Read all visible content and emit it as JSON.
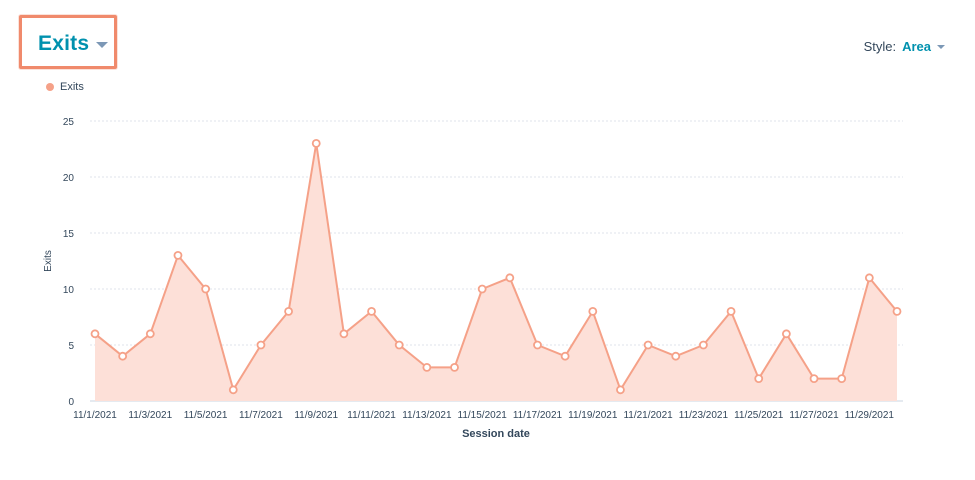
{
  "metric_selector": {
    "label": "Exits"
  },
  "style_control": {
    "prefix": "Style:",
    "value": "Area"
  },
  "legend": {
    "items": [
      {
        "label": "Exits",
        "color": "#f5a188"
      }
    ]
  },
  "colors": {
    "line": "#f5a188",
    "fill": "#fde0d8",
    "grid": "#dfe3eb",
    "accent": "#0091ae",
    "highlight_border": "#f08a6c"
  },
  "chart_data": {
    "type": "area",
    "x": [
      "11/1/2021",
      "11/2/2021",
      "11/3/2021",
      "11/4/2021",
      "11/5/2021",
      "11/6/2021",
      "11/7/2021",
      "11/8/2021",
      "11/9/2021",
      "11/10/2021",
      "11/11/2021",
      "11/12/2021",
      "11/13/2021",
      "11/14/2021",
      "11/15/2021",
      "11/16/2021",
      "11/17/2021",
      "11/18/2021",
      "11/19/2021",
      "11/20/2021",
      "11/21/2021",
      "11/22/2021",
      "11/23/2021",
      "11/24/2021",
      "11/25/2021",
      "11/26/2021",
      "11/27/2021",
      "11/28/2021",
      "11/29/2021",
      "11/30/2021"
    ],
    "tick_labels": [
      "11/1/2021",
      "11/3/2021",
      "11/5/2021",
      "11/7/2021",
      "11/9/2021",
      "11/11/2021",
      "11/13/2021",
      "11/15/2021",
      "11/17/2021",
      "11/19/2021",
      "11/21/2021",
      "11/23/2021",
      "11/25/2021",
      "11/27/2021",
      "11/29/2021"
    ],
    "series": [
      {
        "name": "Exits",
        "values": [
          6,
          4,
          6,
          13,
          10,
          1,
          5,
          8,
          23,
          6,
          8,
          5,
          3,
          3,
          10,
          11,
          5,
          4,
          8,
          1,
          5,
          4,
          5,
          8,
          2,
          6,
          2,
          2,
          11,
          8
        ]
      }
    ],
    "xlabel": "Session date",
    "ylabel": "Exits",
    "ylim": [
      0,
      25
    ],
    "yticks": [
      0,
      5,
      10,
      15,
      20,
      25
    ],
    "grid": true,
    "legend_position": "top-left"
  }
}
